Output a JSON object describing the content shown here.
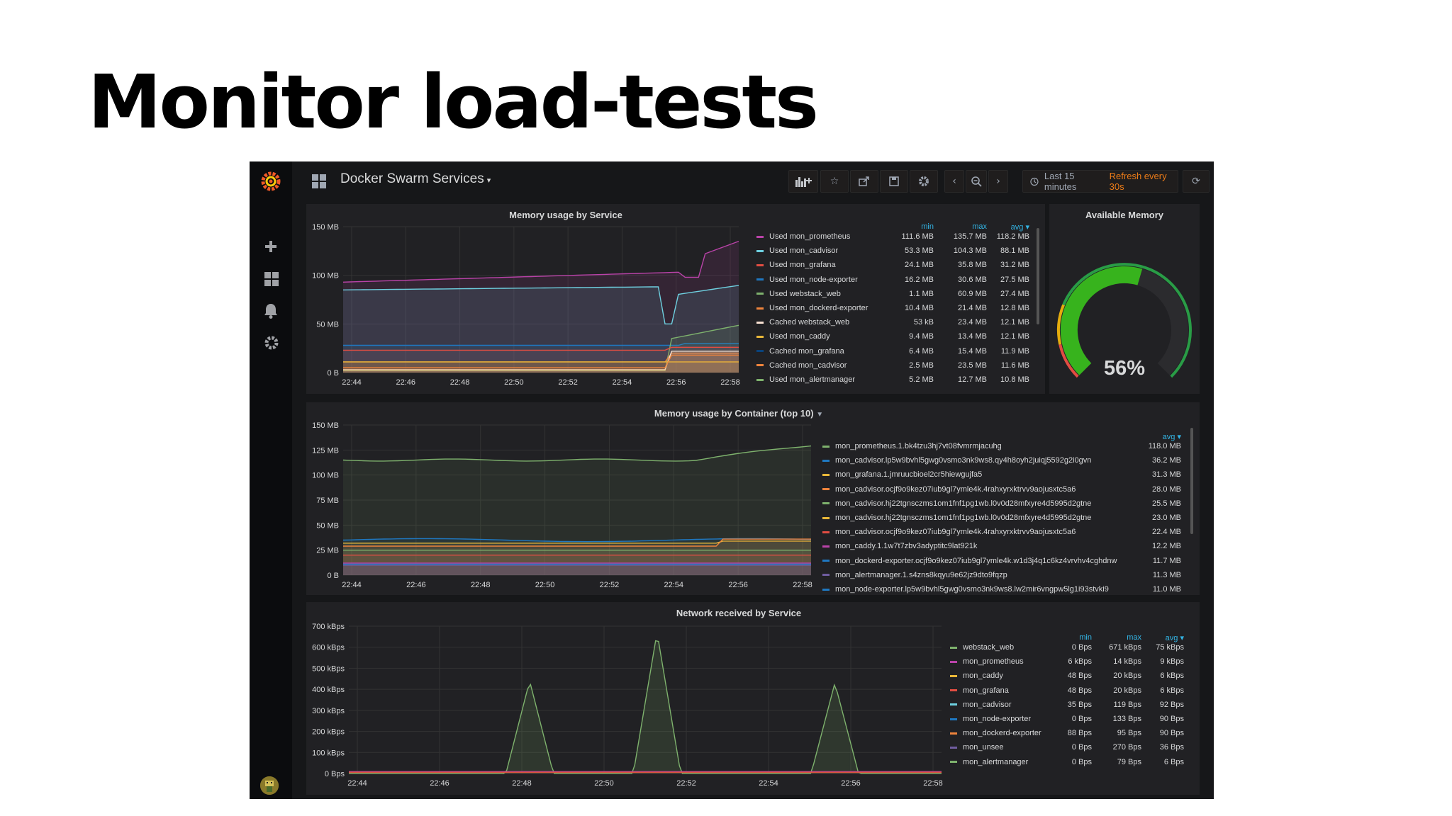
{
  "slide": {
    "title": "Monitor load-tests"
  },
  "dashboard": {
    "title": "Docker Swarm Services",
    "time_range": "Last 15 minutes",
    "refresh": "Refresh every 30s",
    "x_ticks": [
      "22:44",
      "22:46",
      "22:48",
      "22:50",
      "22:52",
      "22:54",
      "22:56",
      "22:58"
    ]
  },
  "colors": {
    "green": "#7eb26d",
    "yellow": "#eab839",
    "cyan": "#6ed0e0",
    "orange": "#ef843c",
    "red": "#e24d42",
    "blue": "#1f78c1",
    "purple": "#ba43a9",
    "darkblue": "#0a437c",
    "gaugeGreen": "#37b31d",
    "accent": "#33b5e5",
    "refresh": "#eb7b18"
  },
  "panels": {
    "memory_service": {
      "title": "Memory usage by Service",
      "y_ticks": [
        "150 MB",
        "100 MB",
        "50 MB",
        "0 B"
      ],
      "legend_headers": [
        "min",
        "max",
        "avg ▾"
      ],
      "legend": [
        {
          "name": "Used mon_prometheus",
          "color": "#ba43a9",
          "min": "111.6 MB",
          "max": "135.7 MB",
          "avg": "118.2 MB"
        },
        {
          "name": "Used mon_cadvisor",
          "color": "#6ed0e0",
          "min": "53.3 MB",
          "max": "104.3 MB",
          "avg": "88.1 MB"
        },
        {
          "name": "Used mon_grafana",
          "color": "#e24d42",
          "min": "24.1 MB",
          "max": "35.8 MB",
          "avg": "31.2 MB"
        },
        {
          "name": "Used mon_node-exporter",
          "color": "#1f78c1",
          "min": "16.2 MB",
          "max": "30.6 MB",
          "avg": "27.5 MB"
        },
        {
          "name": "Used webstack_web",
          "color": "#7eb26d",
          "min": "1.1 MB",
          "max": "60.9 MB",
          "avg": "27.4 MB"
        },
        {
          "name": "Used mon_dockerd-exporter",
          "color": "#ef843c",
          "min": "10.4 MB",
          "max": "21.4 MB",
          "avg": "12.8 MB"
        },
        {
          "name": "Cached webstack_web",
          "color": "#f9e2d2",
          "min": "53 kB",
          "max": "23.4 MB",
          "avg": "12.1 MB"
        },
        {
          "name": "Used mon_caddy",
          "color": "#eab839",
          "min": "9.4 MB",
          "max": "13.4 MB",
          "avg": "12.1 MB"
        },
        {
          "name": "Cached mon_grafana",
          "color": "#0a437c",
          "min": "6.4 MB",
          "max": "15.4 MB",
          "avg": "11.9 MB"
        },
        {
          "name": "Cached mon_cadvisor",
          "color": "#ef843c",
          "min": "2.5 MB",
          "max": "23.5 MB",
          "avg": "11.6 MB"
        },
        {
          "name": "Used mon_alertmanager",
          "color": "#7eb26d",
          "min": "5.2 MB",
          "max": "12.7 MB",
          "avg": "10.8 MB"
        }
      ]
    },
    "available_memory": {
      "title": "Available Memory",
      "value_text": "56%",
      "value": 56
    },
    "memory_container": {
      "title": "Memory usage by Container (top 10)",
      "y_ticks": [
        "150 MB",
        "125 MB",
        "100 MB",
        "75 MB",
        "50 MB",
        "25 MB",
        "0 B"
      ],
      "legend_headers": [
        "avg ▾"
      ],
      "legend": [
        {
          "name": "mon_prometheus.1.bk4tzu3hj7vt08fvmrmjacuhg",
          "color": "#7eb26d",
          "avg": "118.0 MB"
        },
        {
          "name": "mon_cadvisor.lp5w9bvhl5gwg0vsmo3nk9ws8.qy4h8oyh2juiqj5592g2i0gvn",
          "color": "#1f78c1",
          "avg": "36.2 MB"
        },
        {
          "name": "mon_grafana.1.jmruucbioel2cr5hiewgujfa5",
          "color": "#eab839",
          "avg": "31.3 MB"
        },
        {
          "name": "mon_cadvisor.ocjf9o9kez07iub9gl7ymle4k.4rahxyrxktrvv9aojusxtc5a6",
          "color": "#ef843c",
          "avg": "28.0 MB"
        },
        {
          "name": "mon_cadvisor.hj22tgnsczms1om1fnf1pg1wb.l0v0d28mfxyre4d5995d2gtne",
          "color": "#7eb26d",
          "avg": "25.5 MB"
        },
        {
          "name": "mon_cadvisor.hj22tgnsczms1om1fnf1pg1wb.l0v0d28mfxyre4d5995d2gtne",
          "color": "#eab839",
          "avg": "23.0 MB"
        },
        {
          "name": "mon_cadvisor.ocjf9o9kez07iub9gl7ymle4k.4rahxyrxktrvv9aojusxtc5a6",
          "color": "#e24d42",
          "avg": "22.4 MB"
        },
        {
          "name": "mon_caddy.1.1w7t7zbv3adyptitc9lat921k",
          "color": "#ba43a9",
          "avg": "12.2 MB"
        },
        {
          "name": "mon_dockerd-exporter.ocjf9o9kez07iub9gl7ymle4k.w1d3j4q1c6kz4vrvhv4cghdnw",
          "color": "#1f78c1",
          "avg": "11.7 MB"
        },
        {
          "name": "mon_alertmanager.1.s4zns8kqyu9e62jz9dto9fqzp",
          "color": "#705da0",
          "avg": "11.3 MB"
        },
        {
          "name": "mon_node-exporter.lp5w9bvhl5gwg0vsmo3nk9ws8.lw2mir6vngpw5lg1i93stvki9",
          "color": "#1f78c1",
          "avg": "11.0 MB"
        }
      ]
    },
    "network": {
      "title": "Network received by Service",
      "y_ticks": [
        "700 kBps",
        "600 kBps",
        "500 kBps",
        "400 kBps",
        "300 kBps",
        "200 kBps",
        "100 kBps",
        "0 Bps"
      ],
      "legend_headers": [
        "min",
        "max",
        "avg ▾"
      ],
      "legend": [
        {
          "name": "webstack_web",
          "color": "#7eb26d",
          "min": "0 Bps",
          "max": "671 kBps",
          "avg": "75 kBps"
        },
        {
          "name": "mon_prometheus",
          "color": "#ba43a9",
          "min": "6 kBps",
          "max": "14 kBps",
          "avg": "9 kBps"
        },
        {
          "name": "mon_caddy",
          "color": "#eab839",
          "min": "48 Bps",
          "max": "20 kBps",
          "avg": "6 kBps"
        },
        {
          "name": "mon_grafana",
          "color": "#e24d42",
          "min": "48 Bps",
          "max": "20 kBps",
          "avg": "6 kBps"
        },
        {
          "name": "mon_cadvisor",
          "color": "#6ed0e0",
          "min": "35 Bps",
          "max": "119 Bps",
          "avg": "92 Bps"
        },
        {
          "name": "mon_node-exporter",
          "color": "#1f78c1",
          "min": "0 Bps",
          "max": "133 Bps",
          "avg": "90 Bps"
        },
        {
          "name": "mon_dockerd-exporter",
          "color": "#ef843c",
          "min": "88 Bps",
          "max": "95 Bps",
          "avg": "90 Bps"
        },
        {
          "name": "mon_unsee",
          "color": "#705da0",
          "min": "0 Bps",
          "max": "270 Bps",
          "avg": "36 Bps"
        },
        {
          "name": "mon_alertmanager",
          "color": "#7eb26d",
          "min": "0 Bps",
          "max": "79 Bps",
          "avg": "6 Bps"
        }
      ]
    }
  }
}
